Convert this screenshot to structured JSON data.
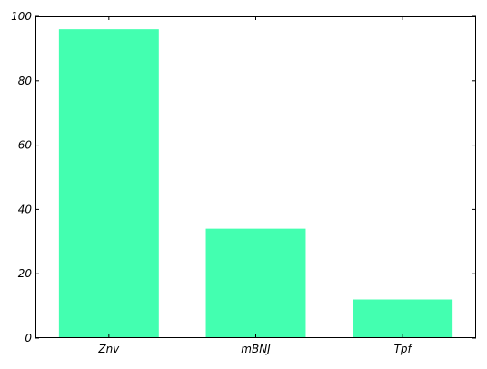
{
  "chart_data": {
    "type": "bar",
    "title": "",
    "xlabel": "",
    "ylabel": "",
    "categories": [
      "Znv",
      "mBNJ",
      "Tpf"
    ],
    "values": [
      96,
      34,
      12
    ],
    "ylim": [
      0,
      100
    ],
    "yticks": [
      0,
      20,
      40,
      60,
      80,
      100
    ],
    "grid": false,
    "bar_color": "#43ffb0",
    "axis_color": "#000000"
  }
}
